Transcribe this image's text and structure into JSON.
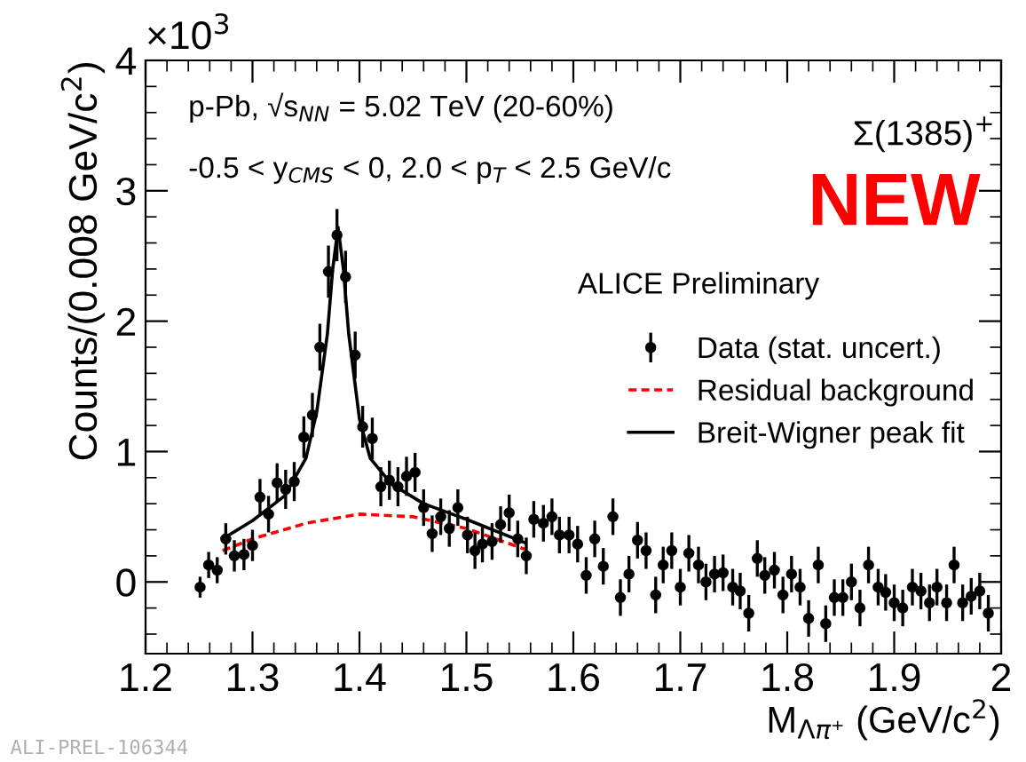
{
  "chart_data": {
    "type": "scatter",
    "xlabel": "M$_{Λπ⁺}$ (GeV/c$^{2}$)",
    "ylabel": "Counts/(0.008 GeV/c$^{2}$)",
    "annotations": [
      "×10$^{3}$",
      "p-Pb, √s$_{NN}$ = 5.02 TeV (20-60%)",
      "-0.5 < y$_{CMS}$ < 0, 2.0 < p$_{T}$ < 2.5 GeV/c",
      "Σ(1385)$^{+}$",
      "NEW",
      "ALICE Preliminary",
      "ALI-PREL-106344"
    ],
    "xlim": [
      1.2,
      2.0
    ],
    "ylim": [
      -0.55,
      4
    ],
    "xticks": [
      {
        "value": 1.2,
        "label": "1.2"
      },
      {
        "value": 1.3,
        "label": "1.3"
      },
      {
        "value": 1.4,
        "label": "1.4"
      },
      {
        "value": 1.5,
        "label": "1.5"
      },
      {
        "value": 1.6,
        "label": "1.6"
      },
      {
        "value": 1.7,
        "label": "1.7"
      },
      {
        "value": 1.8,
        "label": "1.8"
      },
      {
        "value": 1.9,
        "label": "1.9"
      },
      {
        "value": 2.0,
        "label": "2"
      }
    ],
    "yticks": [
      0,
      1,
      2,
      3,
      4
    ],
    "grid": false,
    "legend": "right",
    "series": [
      {
        "name": "Data (stat. uncert.)",
        "marker": "circle",
        "color": "#000000",
        "x": [
          1.251,
          1.259,
          1.267,
          1.275,
          1.283,
          1.292,
          1.3,
          1.307,
          1.315,
          1.323,
          1.331,
          1.339,
          1.348,
          1.356,
          1.363,
          1.371,
          1.379,
          1.387,
          1.396,
          1.403,
          1.412,
          1.42,
          1.428,
          1.436,
          1.444,
          1.452,
          1.46,
          1.468,
          1.476,
          1.484,
          1.492,
          1.501,
          1.508,
          1.515,
          1.524,
          1.532,
          1.54,
          1.548,
          1.556,
          1.563,
          1.572,
          1.58,
          1.587,
          1.596,
          1.604,
          1.612,
          1.62,
          1.628,
          1.637,
          1.644,
          1.652,
          1.66,
          1.668,
          1.677,
          1.684,
          1.692,
          1.7,
          1.708,
          1.717,
          1.724,
          1.732,
          1.74,
          1.749,
          1.756,
          1.764,
          1.772,
          1.779,
          1.788,
          1.796,
          1.804,
          1.812,
          1.82,
          1.829,
          1.836,
          1.844,
          1.852,
          1.86,
          1.868,
          1.876,
          1.885,
          1.892,
          1.9,
          1.908,
          1.917,
          1.925,
          1.933,
          1.94,
          1.949,
          1.956,
          1.964,
          1.972,
          1.98,
          1.988
        ],
        "values": [
          -0.04,
          0.13,
          0.09,
          0.33,
          0.2,
          0.21,
          0.28,
          0.65,
          0.52,
          0.76,
          0.71,
          0.77,
          1.11,
          1.28,
          1.8,
          2.38,
          2.66,
          2.34,
          1.74,
          1.19,
          1.1,
          0.73,
          0.78,
          0.73,
          0.81,
          0.84,
          0.57,
          0.37,
          0.5,
          0.41,
          0.57,
          0.36,
          0.24,
          0.29,
          0.31,
          0.44,
          0.53,
          0.33,
          0.2,
          0.48,
          0.45,
          0.5,
          0.36,
          0.36,
          0.29,
          0.05,
          0.33,
          0.12,
          0.5,
          -0.12,
          0.06,
          0.32,
          0.24,
          -0.1,
          0.13,
          0.24,
          -0.04,
          0.22,
          0.13,
          0.0,
          0.06,
          0.07,
          -0.04,
          -0.07,
          -0.24,
          0.18,
          0.05,
          0.09,
          -0.1,
          0.06,
          -0.04,
          -0.28,
          0.13,
          -0.32,
          -0.12,
          -0.12,
          0.0,
          -0.2,
          0.13,
          -0.04,
          -0.08,
          -0.16,
          -0.2,
          -0.04,
          -0.07,
          -0.16,
          -0.04,
          -0.16,
          0.13,
          -0.16,
          -0.11,
          -0.07,
          -0.24
        ],
        "errors": [
          0.08,
          0.1,
          0.1,
          0.12,
          0.12,
          0.12,
          0.12,
          0.14,
          0.14,
          0.15,
          0.15,
          0.15,
          0.16,
          0.17,
          0.18,
          0.2,
          0.2,
          0.2,
          0.18,
          0.16,
          0.16,
          0.15,
          0.15,
          0.15,
          0.15,
          0.15,
          0.14,
          0.14,
          0.14,
          0.14,
          0.14,
          0.14,
          0.14,
          0.14,
          0.14,
          0.14,
          0.14,
          0.14,
          0.14,
          0.14,
          0.14,
          0.14,
          0.14,
          0.14,
          0.14,
          0.14,
          0.14,
          0.14,
          0.14,
          0.14,
          0.14,
          0.14,
          0.14,
          0.14,
          0.14,
          0.14,
          0.14,
          0.14,
          0.14,
          0.14,
          0.14,
          0.14,
          0.14,
          0.14,
          0.14,
          0.14,
          0.14,
          0.14,
          0.14,
          0.14,
          0.14,
          0.14,
          0.14,
          0.14,
          0.14,
          0.14,
          0.14,
          0.14,
          0.14,
          0.14,
          0.14,
          0.14,
          0.14,
          0.14,
          0.14,
          0.14,
          0.14,
          0.14,
          0.14,
          0.14,
          0.14,
          0.14,
          0.14
        ]
      },
      {
        "name": "Residual background",
        "type": "line",
        "line_style": "dashed",
        "marker": "none",
        "color": "#ff0000",
        "x": [
          1.272,
          1.3,
          1.35,
          1.4,
          1.45,
          1.5,
          1.555
        ],
        "values": [
          0.24,
          0.33,
          0.45,
          0.52,
          0.5,
          0.41,
          0.25
        ]
      },
      {
        "name": "Breit-Wigner peak fit",
        "type": "line",
        "line_style": "solid",
        "marker": "none",
        "color": "#000000",
        "x": [
          1.272,
          1.3,
          1.33,
          1.35,
          1.36,
          1.37,
          1.375,
          1.38,
          1.385,
          1.39,
          1.4,
          1.41,
          1.43,
          1.46,
          1.5,
          1.555
        ],
        "values": [
          0.33,
          0.47,
          0.66,
          0.95,
          1.3,
          1.9,
          2.4,
          2.72,
          2.4,
          1.9,
          1.25,
          0.95,
          0.75,
          0.6,
          0.48,
          0.3
        ]
      }
    ]
  }
}
